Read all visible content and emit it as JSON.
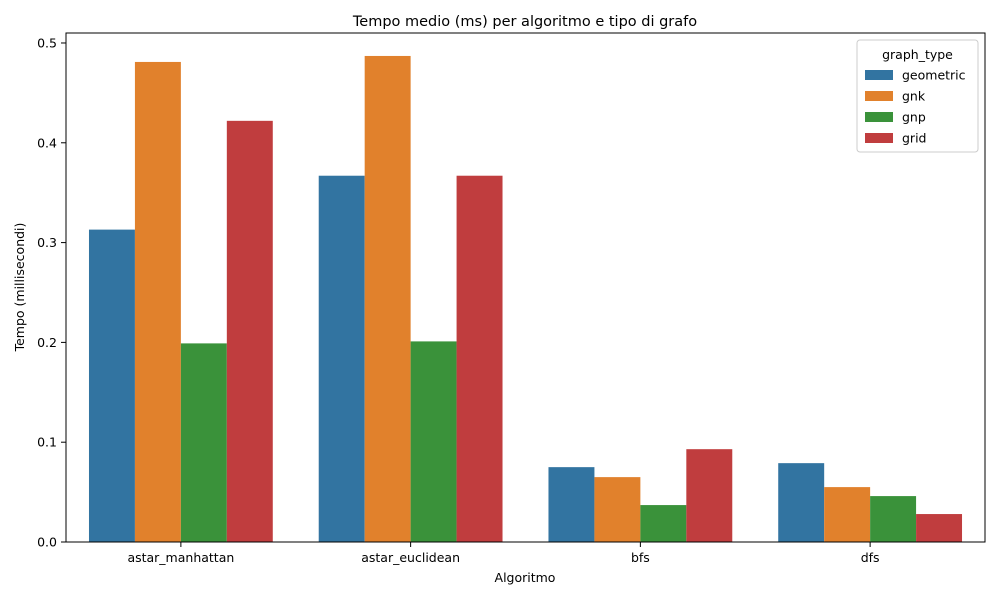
{
  "chart_data": {
    "type": "bar",
    "title": "Tempo medio (ms) per algoritmo e tipo di grafo",
    "xlabel": "Algoritmo",
    "ylabel": "Tempo (millisecondi)",
    "categories": [
      "astar_manhattan",
      "astar_euclidean",
      "bfs",
      "dfs"
    ],
    "ylim": [
      0,
      0.51
    ],
    "yticks": [
      "0.0",
      "0.1",
      "0.2",
      "0.3",
      "0.4",
      "0.5"
    ],
    "ytick_values": [
      0,
      0.1,
      0.2,
      0.3,
      0.4,
      0.5
    ],
    "legend": {
      "title": "graph_type",
      "placement": "top-right"
    },
    "grid": false,
    "series": [
      {
        "name": "geometric",
        "color": "#3274a1",
        "values": [
          0.313,
          0.367,
          0.075,
          0.079
        ]
      },
      {
        "name": "gnk",
        "color": "#e1812c",
        "values": [
          0.481,
          0.487,
          0.065,
          0.055
        ]
      },
      {
        "name": "gnp",
        "color": "#3a923a",
        "values": [
          0.199,
          0.201,
          0.037,
          0.046
        ]
      },
      {
        "name": "grid",
        "color": "#c03d3e",
        "values": [
          0.422,
          0.367,
          0.093,
          0.028
        ]
      }
    ]
  }
}
